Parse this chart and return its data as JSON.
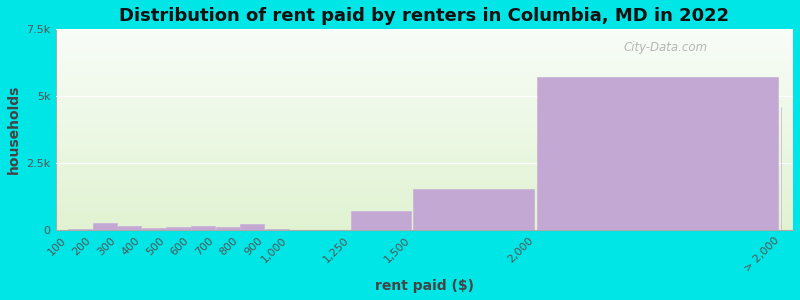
{
  "title": "Distribution of rent paid by renters in Columbia, MD in 2022",
  "xlabel": "rent paid ($)",
  "ylabel": "households",
  "background_outer": "#00e5e5",
  "bar_color": "#c4a8d4",
  "bar_edge_color": "#c8b0d8",
  "bin_edges": [
    0,
    100,
    200,
    300,
    400,
    500,
    600,
    700,
    800,
    900,
    1000,
    1250,
    1500,
    2000,
    3000
  ],
  "bin_labels": [
    "100",
    "200",
    "300",
    "400",
    "500",
    "600",
    "700",
    "800",
    "900",
    "1,000",
    "1,250",
    "1,500",
    "2,000",
    "> 2,000"
  ],
  "values": [
    30,
    280,
    160,
    100,
    115,
    170,
    120,
    240,
    55,
    25,
    700,
    1550,
    5700,
    4600
  ],
  "ylim": [
    0,
    7500
  ],
  "ytick_labels": [
    "0",
    "2.5k",
    "5k",
    "7.5k"
  ],
  "ytick_values": [
    0,
    2500,
    5000,
    7500
  ],
  "title_fontsize": 13,
  "axis_label_fontsize": 10,
  "tick_fontsize": 8,
  "watermark_text": "City-Data.com"
}
